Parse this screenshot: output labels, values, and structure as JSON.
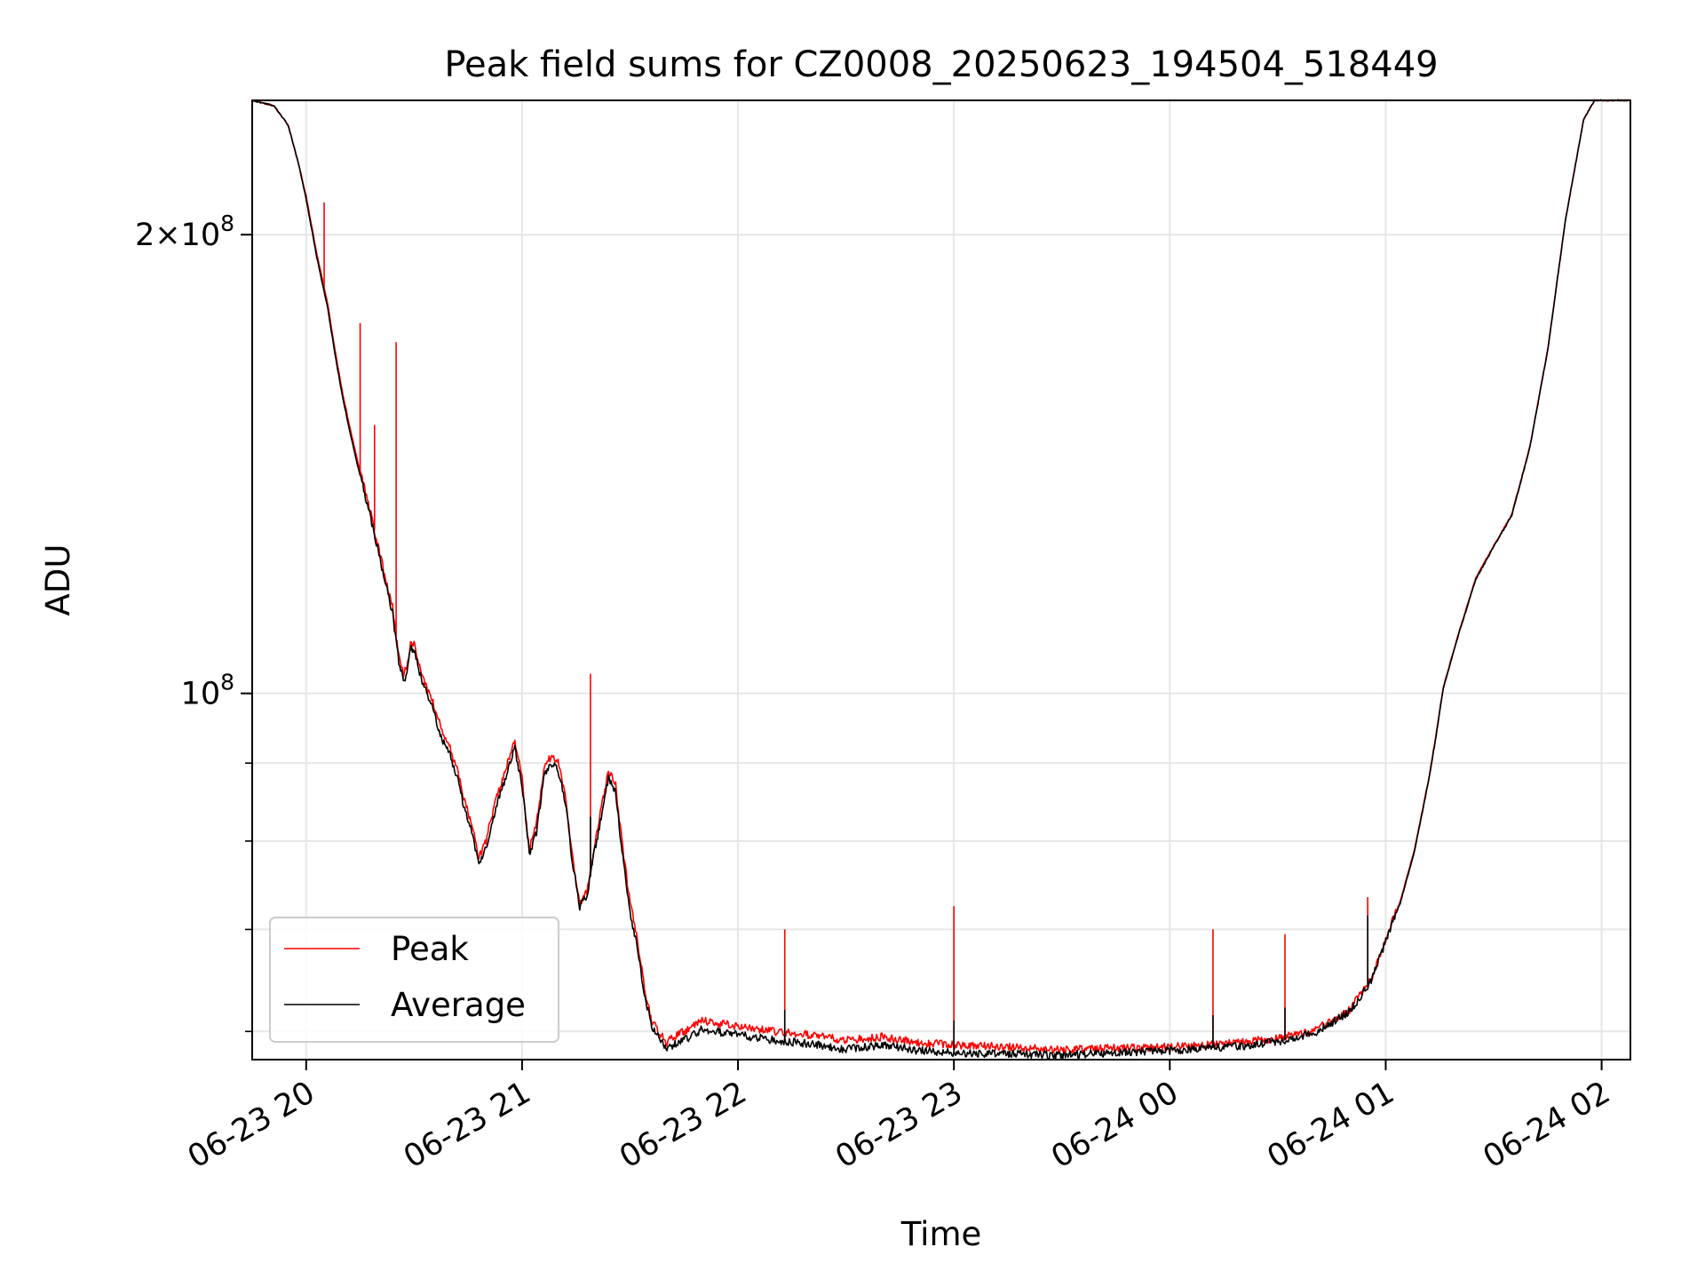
{
  "chart_data": {
    "type": "line",
    "title": "Peak field sums for CZ0008_20250623_194504_518449",
    "xlabel": "Time",
    "ylabel": "ADU",
    "x_tick_labels": [
      "06-23 20",
      "06-23 21",
      "06-23 22",
      "06-23 23",
      "06-24 00",
      "06-24 01",
      "06-24 02"
    ],
    "y_tick_labels": [
      {
        "value": 100000000,
        "label": "10^8"
      },
      {
        "value": 200000000,
        "label": "2×10^8"
      }
    ],
    "y_scale": "log",
    "xlim": [
      "2025-06-23T19:45",
      "2025-06-24T02:08"
    ],
    "ylim": [
      57500000,
      245000000
    ],
    "grid": true,
    "legend_position": "lower-left",
    "series": [
      {
        "name": "Peak",
        "color": "#ff0000",
        "points": [
          [
            "19:45",
            245000000
          ],
          [
            "19:51",
            243000000
          ],
          [
            "19:55",
            236000000
          ],
          [
            "19:58",
            222000000
          ],
          [
            "20:00",
            212000000
          ],
          [
            "20:03",
            194000000
          ],
          [
            "20:06",
            180000000
          ],
          [
            "20:08",
            168000000
          ],
          [
            "20:10",
            158000000
          ],
          [
            "20:12",
            150000000
          ],
          [
            "20:14",
            143000000
          ],
          [
            "20:16",
            137000000
          ],
          [
            "20:18",
            131000000
          ],
          [
            "20:20",
            125000000
          ],
          [
            "20:22",
            119000000
          ],
          [
            "20:24",
            114000000
          ],
          [
            "20:25",
            109000000
          ],
          [
            "20:26",
            105000000
          ],
          [
            "20:27",
            103000000
          ],
          [
            "20:28",
            104000000
          ],
          [
            "20:29",
            108000000
          ],
          [
            "20:30",
            108000000
          ],
          [
            "20:32",
            103000000
          ],
          [
            "20:35",
            99000000
          ],
          [
            "20:38",
            94000000
          ],
          [
            "20:40",
            92000000
          ],
          [
            "20:42",
            89000000
          ],
          [
            "20:44",
            85000000
          ],
          [
            "20:46",
            82000000
          ],
          [
            "20:48",
            78000000
          ],
          [
            "20:50",
            80000000
          ],
          [
            "20:52",
            84000000
          ],
          [
            "20:54",
            87000000
          ],
          [
            "20:56",
            90000000
          ],
          [
            "20:58",
            93000000
          ],
          [
            "21:00",
            88000000
          ],
          [
            "21:02",
            79000000
          ],
          [
            "21:04",
            82000000
          ],
          [
            "21:06",
            89000000
          ],
          [
            "21:08",
            91000000
          ],
          [
            "21:10",
            90000000
          ],
          [
            "21:12",
            86000000
          ],
          [
            "21:14",
            78000000
          ],
          [
            "21:16",
            73000000
          ],
          [
            "21:18",
            74000000
          ],
          [
            "21:20",
            79000000
          ],
          [
            "21:22",
            84000000
          ],
          [
            "21:24",
            89000000
          ],
          [
            "21:26",
            87000000
          ],
          [
            "21:28",
            79000000
          ],
          [
            "21:30",
            73000000
          ],
          [
            "21:32",
            69000000
          ],
          [
            "21:34",
            64000000
          ],
          [
            "21:36",
            61000000
          ],
          [
            "21:40",
            59000000
          ],
          [
            "21:45",
            60000000
          ],
          [
            "21:50",
            61000000
          ],
          [
            "22:00",
            60500000
          ],
          [
            "22:10",
            60000000
          ],
          [
            "22:20",
            59700000
          ],
          [
            "22:30",
            59200000
          ],
          [
            "22:40",
            59500000
          ],
          [
            "22:50",
            59000000
          ],
          [
            "23:00",
            58800000
          ],
          [
            "23:15",
            58600000
          ],
          [
            "23:30",
            58400000
          ],
          [
            "23:45",
            58500000
          ],
          [
            "00:00",
            58600000
          ],
          [
            "00:10",
            58800000
          ],
          [
            "00:20",
            59000000
          ],
          [
            "00:30",
            59400000
          ],
          [
            "00:40",
            60000000
          ],
          [
            "00:50",
            62000000
          ],
          [
            "00:56",
            65000000
          ],
          [
            "01:00",
            69000000
          ],
          [
            "01:04",
            73000000
          ],
          [
            "01:08",
            79000000
          ],
          [
            "01:12",
            88000000
          ],
          [
            "01:14",
            94000000
          ],
          [
            "01:16",
            101000000
          ],
          [
            "01:20",
            109000000
          ],
          [
            "01:25",
            119000000
          ],
          [
            "01:30",
            125000000
          ],
          [
            "01:35",
            131000000
          ],
          [
            "01:40",
            145000000
          ],
          [
            "01:45",
            168000000
          ],
          [
            "01:50",
            205000000
          ],
          [
            "01:55",
            238000000
          ],
          [
            "01:58",
            245000000
          ],
          [
            "02:08",
            245000000
          ]
        ],
        "spikes": [
          [
            "20:05",
            210000000
          ],
          [
            "20:15",
            175000000
          ],
          [
            "20:19",
            150000000
          ],
          [
            "20:25",
            170000000
          ],
          [
            "21:19",
            103000000
          ],
          [
            "22:13",
            70000000
          ],
          [
            "23:00",
            72500000
          ],
          [
            "00:12",
            70000000
          ],
          [
            "00:32",
            69500000
          ],
          [
            "00:55",
            73500000
          ]
        ]
      },
      {
        "name": "Average",
        "color": "#000000",
        "points": [
          [
            "19:45",
            245000000
          ],
          [
            "19:51",
            243000000
          ],
          [
            "19:55",
            236000000
          ],
          [
            "19:58",
            222000000
          ],
          [
            "20:00",
            211000000
          ],
          [
            "20:03",
            193000000
          ],
          [
            "20:06",
            179000000
          ],
          [
            "20:08",
            167000000
          ],
          [
            "20:10",
            157000000
          ],
          [
            "20:12",
            149000000
          ],
          [
            "20:14",
            142000000
          ],
          [
            "20:16",
            136000000
          ],
          [
            "20:18",
            130000000
          ],
          [
            "20:20",
            124000000
          ],
          [
            "20:22",
            118000000
          ],
          [
            "20:24",
            113000000
          ],
          [
            "20:25",
            108000000
          ],
          [
            "20:26",
            104000000
          ],
          [
            "20:27",
            102000000
          ],
          [
            "20:28",
            103000000
          ],
          [
            "20:29",
            107000000
          ],
          [
            "20:30",
            107000000
          ],
          [
            "20:32",
            102000000
          ],
          [
            "20:35",
            98000000
          ],
          [
            "20:38",
            93000000
          ],
          [
            "20:40",
            91000000
          ],
          [
            "20:42",
            88000000
          ],
          [
            "20:44",
            84000000
          ],
          [
            "20:46",
            81000000
          ],
          [
            "20:48",
            77500000
          ],
          [
            "20:50",
            79000000
          ],
          [
            "20:52",
            83000000
          ],
          [
            "20:54",
            86000000
          ],
          [
            "20:56",
            89000000
          ],
          [
            "20:58",
            92000000
          ],
          [
            "21:00",
            87000000
          ],
          [
            "21:02",
            78500000
          ],
          [
            "21:04",
            81000000
          ],
          [
            "21:06",
            88000000
          ],
          [
            "21:08",
            90000000
          ],
          [
            "21:10",
            89000000
          ],
          [
            "21:12",
            85000000
          ],
          [
            "21:14",
            77500000
          ],
          [
            "21:16",
            72500000
          ],
          [
            "21:18",
            73500000
          ],
          [
            "21:20",
            78500000
          ],
          [
            "21:22",
            83000000
          ],
          [
            "21:24",
            88000000
          ],
          [
            "21:26",
            86000000
          ],
          [
            "21:28",
            78000000
          ],
          [
            "21:30",
            72000000
          ],
          [
            "21:32",
            68000000
          ],
          [
            "21:34",
            63500000
          ],
          [
            "21:36",
            60500000
          ],
          [
            "21:40",
            58500000
          ],
          [
            "21:45",
            59200000
          ],
          [
            "21:50",
            60200000
          ],
          [
            "22:00",
            59700000
          ],
          [
            "22:10",
            59200000
          ],
          [
            "22:20",
            58900000
          ],
          [
            "22:30",
            58400000
          ],
          [
            "22:40",
            58800000
          ],
          [
            "22:50",
            58300000
          ],
          [
            "23:00",
            58100000
          ],
          [
            "23:15",
            58000000
          ],
          [
            "23:30",
            57900000
          ],
          [
            "23:45",
            58100000
          ],
          [
            "00:00",
            58300000
          ],
          [
            "00:10",
            58500000
          ],
          [
            "00:20",
            58700000
          ],
          [
            "00:30",
            59100000
          ],
          [
            "00:40",
            59800000
          ],
          [
            "00:50",
            61800000
          ],
          [
            "00:56",
            64800000
          ],
          [
            "01:00",
            68800000
          ],
          [
            "01:04",
            72800000
          ],
          [
            "01:08",
            78800000
          ],
          [
            "01:12",
            87800000
          ],
          [
            "01:14",
            93800000
          ],
          [
            "01:16",
            100800000
          ],
          [
            "01:20",
            108800000
          ],
          [
            "01:25",
            118800000
          ],
          [
            "01:30",
            124800000
          ],
          [
            "01:35",
            130800000
          ],
          [
            "01:40",
            144800000
          ],
          [
            "01:45",
            167800000
          ],
          [
            "01:50",
            204800000
          ],
          [
            "01:55",
            238000000
          ],
          [
            "01:58",
            245000000
          ],
          [
            "02:08",
            245000000
          ]
        ],
        "spikes": [
          [
            "21:19",
            83000000
          ],
          [
            "22:13",
            62000000
          ],
          [
            "23:00",
            61000000
          ],
          [
            "00:12",
            61500000
          ],
          [
            "00:32",
            62200000
          ],
          [
            "00:55",
            71500000
          ]
        ]
      }
    ]
  }
}
